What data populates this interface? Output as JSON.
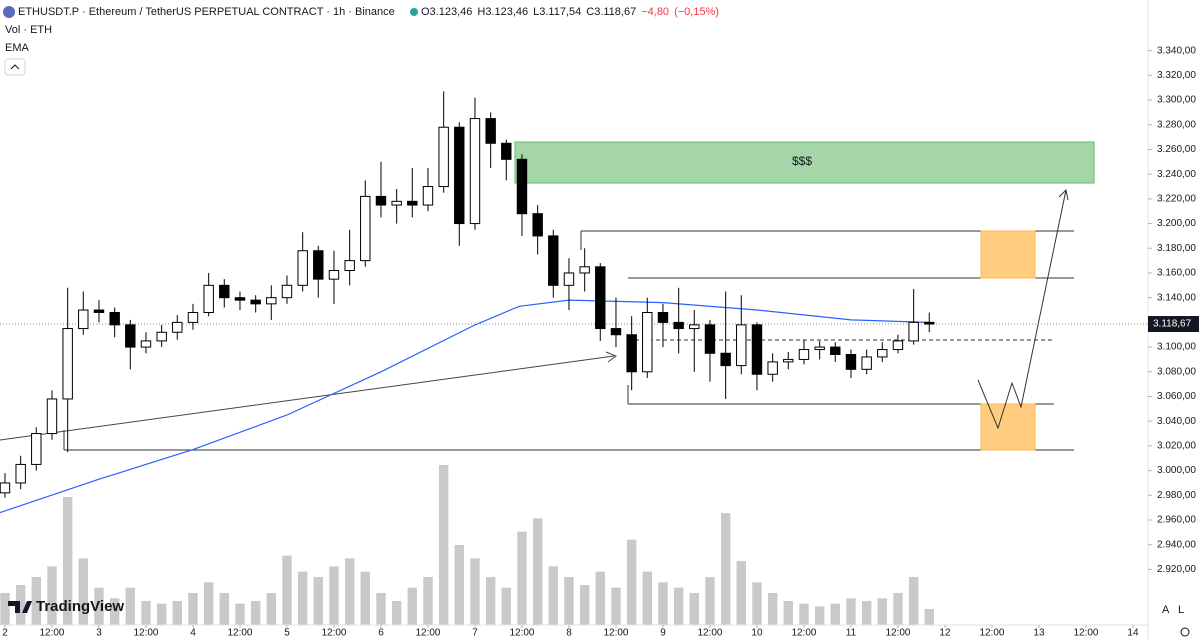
{
  "chart_data": {
    "type": "candlestick",
    "title": "ETHUSDT.P · Ethereum / TetherUS PERPETUAL CONTRACT · 1h · Binance",
    "header_values": [
      3123.46,
      3123.46,
      3117.54,
      3118.67,
      -4.8,
      -0.15
    ],
    "header_value_labels": [
      "O3.123,46",
      "H3.123,46",
      "L3.117,54",
      "C3.118,67",
      "−4,80",
      "(−0,15%)"
    ],
    "volume_label": "Vol · ETH",
    "ema_label": "EMA",
    "annotation": "$$$",
    "watermark": "TradingView",
    "last_price": {
      "value": 3118.67,
      "label": "3.118,67"
    },
    "x": [
      2,
      2.167,
      2.333,
      2.5,
      2.667,
      2.833,
      3,
      3.167,
      3.333,
      3.5,
      3.667,
      3.833,
      4,
      4.167,
      4.333,
      4.5,
      4.667,
      4.833,
      5,
      5.167,
      5.333,
      5.5,
      5.667,
      5.833,
      6,
      6.167,
      6.333,
      6.5,
      6.667,
      6.833,
      7,
      7.167,
      7.333,
      7.5,
      7.667,
      7.833,
      8,
      8.167,
      8.333,
      8.5,
      8.667,
      8.833,
      9,
      9.167,
      9.333,
      9.5,
      9.667,
      9.833,
      10,
      10.167,
      10.333,
      10.5,
      10.667,
      10.833,
      11,
      11.167,
      11.333,
      11.5,
      11.667,
      11.833
    ],
    "open": [
      2982,
      2990,
      3005,
      3030,
      3058,
      3115,
      3130,
      3128,
      3118,
      3100,
      3105,
      3112,
      3120,
      3128,
      3150,
      3140,
      3138,
      3135,
      3140,
      3150,
      3178,
      3155,
      3162,
      3170,
      3222,
      3215,
      3218,
      3215,
      3230,
      3278,
      3200,
      3285,
      3265,
      3252,
      3208,
      3190,
      3150,
      3160,
      3165,
      3115,
      3110,
      3080,
      3128,
      3120,
      3115,
      3118,
      3095,
      3085,
      3118,
      3078,
      3088,
      3090,
      3098,
      3100,
      3094,
      3082,
      3092,
      3098,
      3105,
      3120
    ],
    "high": [
      2998,
      3012,
      3035,
      3065,
      3148,
      3145,
      3138,
      3132,
      3122,
      3112,
      3118,
      3126,
      3135,
      3160,
      3155,
      3145,
      3142,
      3150,
      3158,
      3193,
      3182,
      3178,
      3195,
      3235,
      3250,
      3228,
      3245,
      3245,
      3307,
      3282,
      3302,
      3290,
      3268,
      3256,
      3215,
      3195,
      3172,
      3180,
      3168,
      3140,
      3125,
      3140,
      3135,
      3148,
      3130,
      3122,
      3145,
      3142,
      3120,
      3095,
      3096,
      3106,
      3105,
      3104,
      3098,
      3098,
      3104,
      3110,
      3147,
      3128
    ],
    "low": [
      2978,
      2985,
      3000,
      3025,
      3015,
      3110,
      3120,
      3108,
      3082,
      3095,
      3100,
      3106,
      3114,
      3125,
      3132,
      3130,
      3128,
      3122,
      3135,
      3145,
      3140,
      3135,
      3150,
      3165,
      3205,
      3200,
      3205,
      3210,
      3225,
      3182,
      3195,
      3245,
      3235,
      3190,
      3175,
      3140,
      3130,
      3145,
      3105,
      3100,
      3065,
      3075,
      3100,
      3095,
      3080,
      3072,
      3058,
      3078,
      3065,
      3072,
      3082,
      3086,
      3090,
      3088,
      3075,
      3078,
      3088,
      3095,
      3102,
      3112
    ],
    "close": [
      2990,
      3005,
      3030,
      3058,
      3115,
      3130,
      3128,
      3118,
      3100,
      3105,
      3112,
      3120,
      3128,
      3150,
      3140,
      3138,
      3135,
      3140,
      3150,
      3178,
      3155,
      3162,
      3170,
      3222,
      3215,
      3218,
      3215,
      3230,
      3278,
      3200,
      3285,
      3265,
      3252,
      3208,
      3190,
      3150,
      3160,
      3165,
      3115,
      3110,
      3080,
      3128,
      3120,
      3115,
      3118,
      3095,
      3085,
      3118,
      3078,
      3088,
      3090,
      3098,
      3100,
      3094,
      3082,
      3092,
      3098,
      3105,
      3120,
      3118.67
    ],
    "volume": [
      12000,
      15000,
      18000,
      22000,
      48000,
      25000,
      14000,
      10000,
      14000,
      9000,
      8000,
      9000,
      12000,
      16000,
      12000,
      8000,
      9000,
      12000,
      26000,
      20000,
      18000,
      22000,
      25000,
      20000,
      12000,
      9000,
      14000,
      18000,
      60000,
      30000,
      25000,
      18000,
      14000,
      35000,
      40000,
      22000,
      18000,
      15000,
      20000,
      14000,
      32000,
      20000,
      16000,
      14000,
      12000,
      18000,
      42000,
      24000,
      16000,
      12000,
      9000,
      8000,
      7000,
      8000,
      10000,
      9000,
      10000,
      12000,
      18000,
      6000
    ],
    "ema_x": [
      1.947,
      3,
      4,
      5,
      6,
      7,
      7.47,
      8,
      9,
      10,
      11,
      11.84
    ],
    "ema": [
      2966,
      2993,
      3017,
      3045,
      3080,
      3118,
      3133,
      3138,
      3136,
      3130,
      3122,
      3120
    ],
    "up_color": "#ffffff",
    "down_color": "#000000",
    "volume_color": "#c9c9c9",
    "ema_color": "#2962ff",
    "xlim": [
      1.947,
      14.16
    ],
    "ylim": [
      2875,
      3381
    ],
    "yticks": [
      {
        "value": 2920,
        "label": "2.920,00"
      },
      {
        "value": 2940,
        "label": "2.940,00"
      },
      {
        "value": 2960,
        "label": "2.960,00"
      },
      {
        "value": 2980,
        "label": "2.980,00"
      },
      {
        "value": 3000,
        "label": "3.000,00"
      },
      {
        "value": 3020,
        "label": "3.020,00"
      },
      {
        "value": 3040,
        "label": "3.040,00"
      },
      {
        "value": 3060,
        "label": "3.060,00"
      },
      {
        "value": 3080,
        "label": "3.080,00"
      },
      {
        "value": 3100,
        "label": "3.100,00"
      },
      {
        "value": 3120,
        "label": "3.120,00"
      },
      {
        "value": 3140,
        "label": "3.140,00"
      },
      {
        "value": 3160,
        "label": "3.160,00"
      },
      {
        "value": 3180,
        "label": "3.180,00"
      },
      {
        "value": 3200,
        "label": "3.200,00"
      },
      {
        "value": 3220,
        "label": "3.220,00"
      },
      {
        "value": 3240,
        "label": "3.240,00"
      },
      {
        "value": 3260,
        "label": "3.260,00"
      },
      {
        "value": 3280,
        "label": "3.280,00"
      },
      {
        "value": 3300,
        "label": "3.300,00"
      },
      {
        "value": 3320,
        "label": "3.320,00"
      },
      {
        "value": 3340,
        "label": "3.340,00"
      }
    ],
    "xticks": [
      2,
      {
        "value": 2.5,
        "label": "12:00"
      },
      3,
      {
        "value": 3.5,
        "label": "12:00"
      },
      4,
      {
        "value": 4.5,
        "label": "12:00"
      },
      5,
      {
        "value": 5.5,
        "label": "12:00"
      },
      6,
      {
        "value": 6.5,
        "label": "12:00"
      },
      7,
      {
        "value": 7.5,
        "label": "12:00"
      },
      8,
      {
        "value": 8.5,
        "label": "12:00"
      },
      9,
      {
        "value": 9.5,
        "label": "12:00"
      },
      10,
      {
        "value": 10.5,
        "label": "12:00"
      },
      11,
      {
        "value": 11.5,
        "label": "12:00"
      },
      12,
      {
        "value": 12.5,
        "label": "12:00"
      },
      13,
      {
        "value": 13.5,
        "label": "12:00"
      },
      14
    ]
  }
}
